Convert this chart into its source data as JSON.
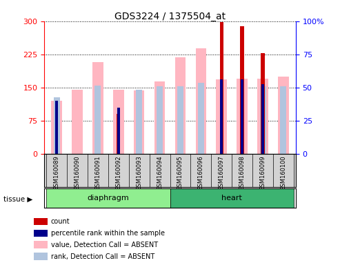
{
  "title": "GDS3224 / 1375504_at",
  "samples": [
    "GSM160089",
    "GSM160090",
    "GSM160091",
    "GSM160092",
    "GSM160093",
    "GSM160094",
    "GSM160095",
    "GSM160096",
    "GSM160097",
    "GSM160098",
    "GSM160099",
    "GSM160100"
  ],
  "tissues": [
    "diaphragm",
    "diaphragm",
    "diaphragm",
    "diaphragm",
    "diaphragm",
    "diaphragm",
    "heart",
    "heart",
    "heart",
    "heart",
    "heart",
    "heart"
  ],
  "count_values": [
    0,
    0,
    0,
    90,
    0,
    0,
    0,
    0,
    298,
    288,
    228,
    0
  ],
  "rank_values": [
    120,
    0,
    0,
    105,
    0,
    0,
    0,
    0,
    168,
    168,
    158,
    0
  ],
  "value_absent": [
    120,
    145,
    208,
    145,
    143,
    163,
    218,
    238,
    168,
    170,
    170,
    175
  ],
  "rank_absent": [
    128,
    0,
    155,
    0,
    145,
    152,
    153,
    160,
    0,
    0,
    152,
    152
  ],
  "ylim_left": [
    0,
    300
  ],
  "ylim_right": [
    0,
    100
  ],
  "yticks_left": [
    0,
    75,
    150,
    225,
    300
  ],
  "yticks_right": [
    0,
    25,
    50,
    75,
    100
  ],
  "count_color": "#CC0000",
  "rank_color": "#00008B",
  "value_absent_color": "#FFB6C1",
  "rank_absent_color": "#B0C4DE",
  "tissue_color_diaphragm": "#90EE90",
  "tissue_color_heart": "#3CB371",
  "plot_bg": "#FFFFFF"
}
